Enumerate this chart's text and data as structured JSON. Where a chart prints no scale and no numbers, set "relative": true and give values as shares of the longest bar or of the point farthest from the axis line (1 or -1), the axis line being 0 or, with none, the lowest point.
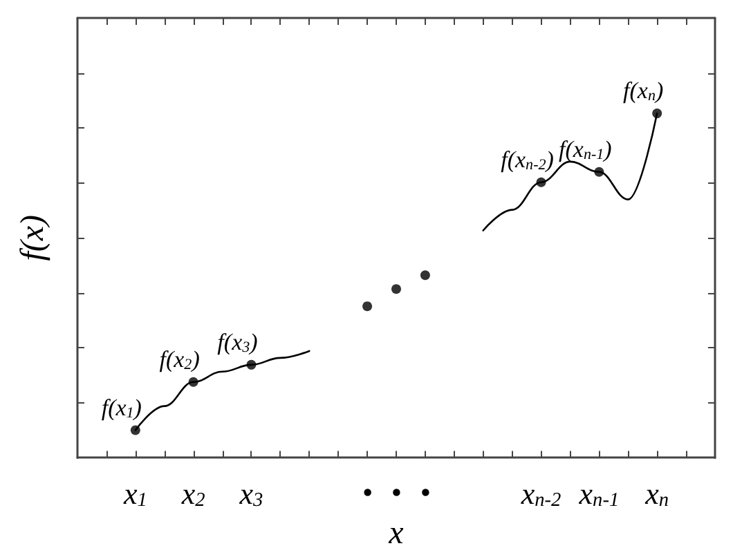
{
  "chart_data": {
    "type": "line",
    "xlabel": "x",
    "ylabel": "f(x)",
    "relative": true,
    "tick_labels": "x",
    "categories": [
      null,
      null,
      "x$_{1}$",
      null,
      "x$_{2}$",
      null,
      "x$_{3}$",
      null,
      null,
      null,
      "•",
      "•",
      "•",
      null,
      null,
      null,
      "x$_{n-2}$",
      null,
      "x$_{n-1}$",
      null,
      "x$_{n}$",
      null,
      null
    ],
    "series": [
      {
        "marker": "none",
        "color": "#000000",
        "values": [
          null,
          null,
          0.08,
          0.15,
          0.22,
          0.25,
          0.27,
          0.29,
          0.31,
          null,
          null,
          null,
          null,
          null,
          null,
          null,
          null,
          null,
          null,
          null,
          null,
          null,
          null
        ]
      },
      {
        "type": "scatter",
        "marker": "circle",
        "color": "#000000",
        "values": [
          null,
          null,
          0.08,
          null,
          0.22,
          null,
          0.27,
          null,
          null,
          null,
          null,
          null,
          null,
          null,
          null,
          null,
          null,
          null,
          null,
          null,
          null,
          null,
          null
        ]
      },
      {
        "type": "scatter",
        "marker": "circle",
        "color": "#000000",
        "values": [
          null,
          null,
          null,
          null,
          null,
          null,
          null,
          null,
          null,
          null,
          0.44,
          0.49,
          0.53,
          null,
          null,
          null,
          null,
          null,
          null,
          null,
          null,
          null,
          null
        ]
      },
      {
        "marker": "none",
        "color": "#000000",
        "values": [
          null,
          null,
          null,
          null,
          null,
          null,
          null,
          null,
          null,
          null,
          null,
          null,
          null,
          null,
          0.66,
          0.72,
          0.8,
          0.86,
          0.83,
          0.75,
          1,
          null,
          null
        ]
      },
      {
        "type": "scatter",
        "marker": "circle",
        "color": "#000000",
        "values": [
          null,
          null,
          null,
          null,
          null,
          null,
          null,
          null,
          null,
          null,
          null,
          null,
          null,
          null,
          null,
          null,
          0.8,
          null,
          0.83,
          null,
          1,
          null,
          null
        ]
      }
    ],
    "annotations": [
      {
        "text": "f(x$_{1}$)",
        "x": "x$_{1}$",
        "y": 0.08
      },
      {
        "text": "f(x$_{2}$)",
        "x": "x$_{2}$",
        "y": 0.22
      },
      {
        "text": "f(x$_{3}$)",
        "x": "x$_{3}$",
        "y": 0.27
      },
      {
        "text": "f(x$_{n-2}$)",
        "x": "x$_{n-2}$",
        "y": 0.8
      },
      {
        "text": "f(x$_{n-1}$)",
        "x": "x$_{n-1}$",
        "y": 0.83
      },
      {
        "text": "f(x$_{n}$)",
        "x": "x$_{n}$",
        "y": 1
      }
    ]
  }
}
